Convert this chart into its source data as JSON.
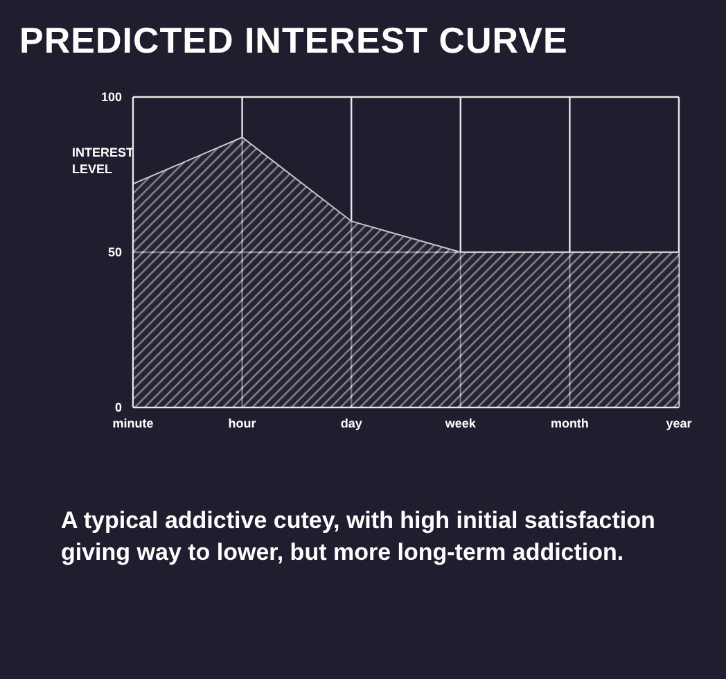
{
  "chart_data": {
    "type": "area",
    "title": "PREDICTED INTEREST CURVE",
    "ylabel": "INTEREST LEVEL",
    "categories": [
      "minute",
      "hour",
      "day",
      "week",
      "month",
      "year"
    ],
    "series": [
      {
        "color": "#c8c8cc",
        "values": [
          72,
          87,
          60,
          50,
          50,
          50
        ]
      }
    ],
    "ylim": [
      0,
      100
    ],
    "yticks": [
      0,
      50,
      100
    ],
    "grid": true,
    "annotations": [
      "A typical addictive cutey, with high initial satisfaction giving way to lower, but more long-term addiction."
    ]
  }
}
